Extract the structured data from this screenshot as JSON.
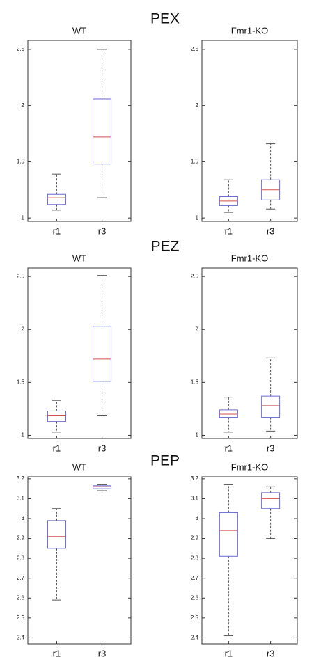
{
  "chart_data": [
    {
      "type": "box",
      "title": "PEX",
      "panels": [
        {
          "title": "WT",
          "categories": [
            "r1",
            "r3"
          ],
          "ylim": [
            0.97,
            2.58
          ],
          "yticks": [
            1,
            1.5,
            2,
            2.5
          ],
          "boxes": [
            {
              "min": 1.07,
              "q1": 1.12,
              "median": 1.18,
              "q3": 1.21,
              "max": 1.39
            },
            {
              "min": 1.18,
              "q1": 1.48,
              "median": 1.72,
              "q3": 2.06,
              "max": 2.5
            }
          ]
        },
        {
          "title": "Fmr1-KO",
          "categories": [
            "r1",
            "r3"
          ],
          "ylim": [
            0.97,
            2.58
          ],
          "yticks": [
            1,
            1.5,
            2,
            2.5
          ],
          "boxes": [
            {
              "min": 1.05,
              "q1": 1.11,
              "median": 1.15,
              "q3": 1.19,
              "max": 1.34
            },
            {
              "min": 1.08,
              "q1": 1.16,
              "median": 1.25,
              "q3": 1.34,
              "max": 1.66
            }
          ]
        }
      ]
    },
    {
      "type": "box",
      "title": "PEZ",
      "panels": [
        {
          "title": "WT",
          "categories": [
            "r1",
            "r3"
          ],
          "ylim": [
            0.97,
            2.58
          ],
          "yticks": [
            1,
            1.5,
            2,
            2.5
          ],
          "boxes": [
            {
              "min": 1.03,
              "q1": 1.13,
              "median": 1.19,
              "q3": 1.23,
              "max": 1.33
            },
            {
              "min": 1.19,
              "q1": 1.51,
              "median": 1.72,
              "q3": 2.03,
              "max": 2.51
            }
          ]
        },
        {
          "title": "Fmr1-KO",
          "categories": [
            "r1",
            "r3"
          ],
          "ylim": [
            0.97,
            2.58
          ],
          "yticks": [
            1,
            1.5,
            2,
            2.5
          ],
          "boxes": [
            {
              "min": 1.03,
              "q1": 1.17,
              "median": 1.2,
              "q3": 1.24,
              "max": 1.36
            },
            {
              "min": 1.04,
              "q1": 1.17,
              "median": 1.28,
              "q3": 1.37,
              "max": 1.73
            }
          ]
        }
      ]
    },
    {
      "type": "box",
      "title": "PEP",
      "panels": [
        {
          "title": "WT",
          "categories": [
            "r1",
            "r3"
          ],
          "ylim": [
            2.37,
            3.21
          ],
          "yticks": [
            2.4,
            2.5,
            2.6,
            2.7,
            2.8,
            2.9,
            3,
            3.1,
            3.2
          ],
          "boxes": [
            {
              "min": 2.59,
              "q1": 2.85,
              "median": 2.91,
              "q3": 2.99,
              "max": 3.05
            },
            {
              "min": 3.14,
              "q1": 3.15,
              "median": 3.16,
              "q3": 3.165,
              "max": 3.17
            }
          ]
        },
        {
          "title": "Fmr1-KO",
          "categories": [
            "r1",
            "r3"
          ],
          "ylim": [
            2.37,
            3.21
          ],
          "yticks": [
            2.4,
            2.5,
            2.6,
            2.7,
            2.8,
            2.9,
            3,
            3.1,
            3.2
          ],
          "boxes": [
            {
              "min": 2.41,
              "q1": 2.81,
              "median": 2.94,
              "q3": 3.03,
              "max": 3.17
            },
            {
              "min": 2.9,
              "q1": 3.05,
              "median": 3.1,
              "q3": 3.13,
              "max": 3.16
            }
          ]
        }
      ]
    }
  ]
}
